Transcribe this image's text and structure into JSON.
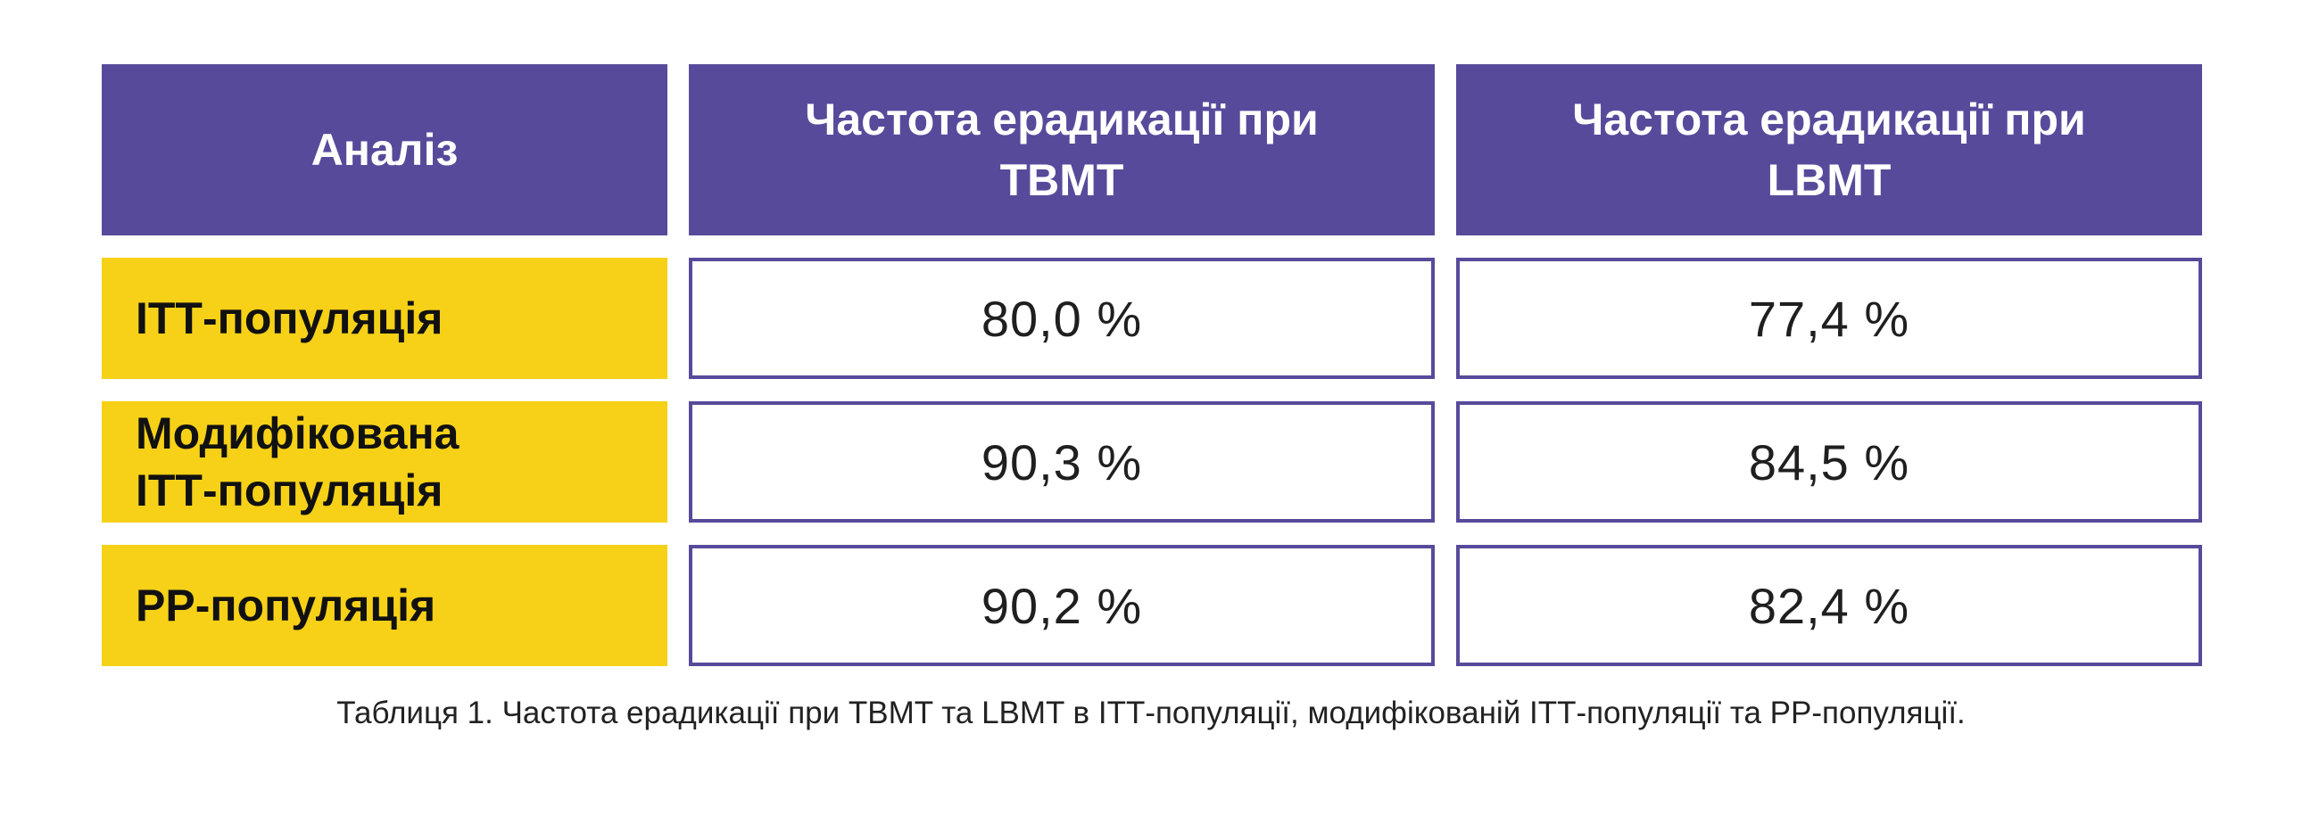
{
  "table": {
    "header": {
      "col_analysis": "Аналіз",
      "col_tbmt": "Частота ерадикації при TBMT",
      "col_lbmt": "Частота ерадикації при LBMT"
    },
    "rows": [
      {
        "label": "ІТТ-популяція",
        "tbmt": "80,0 %",
        "lbmt": "77,4 %"
      },
      {
        "label": "Модифікована ІТТ-популяція",
        "tbmt": "90,3 %",
        "lbmt": "84,5 %"
      },
      {
        "label": "PP-популяція",
        "tbmt": "90,2 %",
        "lbmt": "82,4 %"
      }
    ]
  },
  "caption": "Таблиця 1. Частота ерадикації при TBMT та LBMT в ІТТ-популяції, модифікованій ІТТ-популяції та PP-популяції.",
  "colors": {
    "header_bg": "#584a9b",
    "row_label_bg": "#f7d117",
    "cell_border": "#584a9b"
  }
}
